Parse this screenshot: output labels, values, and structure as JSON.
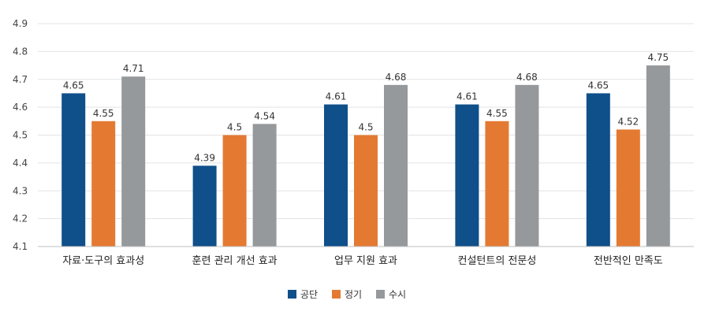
{
  "chart_data": {
    "type": "bar",
    "title": "",
    "xlabel": "",
    "ylabel": "",
    "ylim": [
      4.1,
      4.9
    ],
    "yticks": [
      4.1,
      4.2,
      4.3,
      4.4,
      4.5,
      4.6,
      4.7,
      4.8,
      4.9
    ],
    "grid": true,
    "legend": "bottom-center",
    "categories": [
      "자료·도구의 효과성",
      "훈련 관리 개선 효과",
      "업무 지원 효과",
      "컨설턴트의 전문성",
      "전반적인 만족도"
    ],
    "series": [
      {
        "name": "공단",
        "color": "#0f4f8a",
        "values": [
          4.65,
          4.39,
          4.61,
          4.61,
          4.65
        ]
      },
      {
        "name": "정기",
        "color": "#e47a32",
        "values": [
          4.55,
          4.5,
          4.5,
          4.55,
          4.52
        ]
      },
      {
        "name": "수시",
        "color": "#96999c",
        "values": [
          4.71,
          4.54,
          4.68,
          4.68,
          4.75
        ]
      }
    ]
  }
}
